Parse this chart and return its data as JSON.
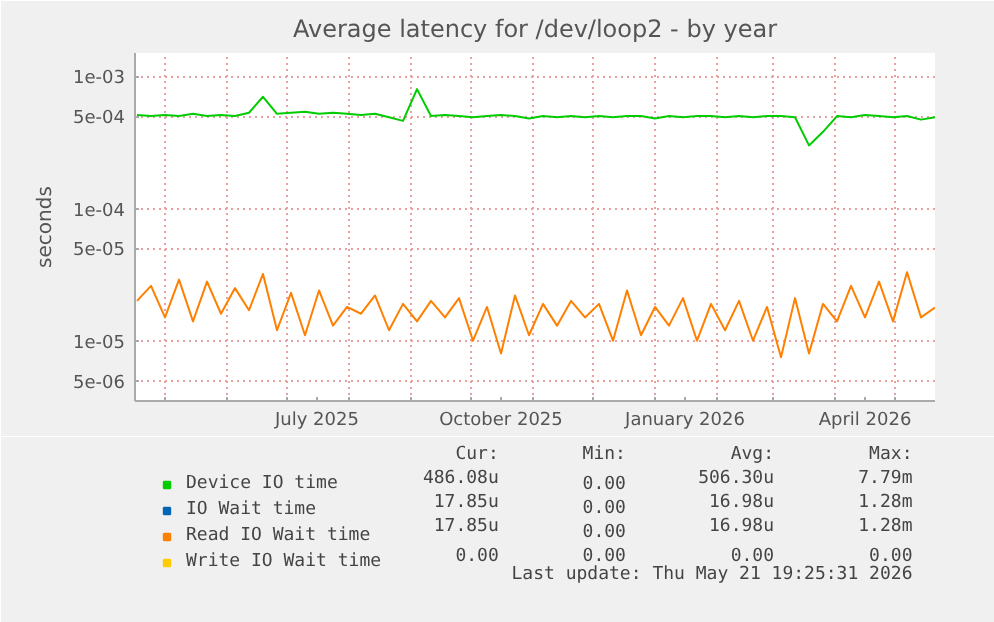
{
  "chart_data": {
    "type": "line",
    "title": "Average latency for /dev/loop2 - by year",
    "ylabel": "seconds",
    "x": [
      "2025-04-17",
      "2025-04-24",
      "2025-05-01",
      "2025-05-08",
      "2025-05-15",
      "2025-05-22",
      "2025-05-29",
      "2025-06-05",
      "2025-06-12",
      "2025-06-19",
      "2025-06-26",
      "2025-07-03",
      "2025-07-10",
      "2025-07-17",
      "2025-07-24",
      "2025-07-31",
      "2025-08-07",
      "2025-08-14",
      "2025-08-21",
      "2025-08-28",
      "2025-09-04",
      "2025-09-11",
      "2025-09-18",
      "2025-09-25",
      "2025-10-02",
      "2025-10-09",
      "2025-10-16",
      "2025-10-23",
      "2025-10-30",
      "2025-11-06",
      "2025-11-13",
      "2025-11-20",
      "2025-11-27",
      "2025-12-04",
      "2025-12-11",
      "2025-12-18",
      "2025-12-25",
      "2026-01-01",
      "2026-01-08",
      "2026-01-15",
      "2026-01-22",
      "2026-01-29",
      "2026-02-05",
      "2026-02-12",
      "2026-02-19",
      "2026-02-26",
      "2026-03-05",
      "2026-03-12",
      "2026-03-19",
      "2026-03-26",
      "2026-04-02",
      "2026-04-09",
      "2026-04-16",
      "2026-04-23",
      "2026-04-30",
      "2026-05-07",
      "2026-05-14",
      "2026-05-21"
    ],
    "series": [
      {
        "name": "Device IO time",
        "color": "#00cc00",
        "values": [
          0.00051,
          0.0005,
          0.00051,
          0.0005,
          0.00052,
          0.0005,
          0.00051,
          0.0005,
          0.00053,
          0.0007,
          0.00052,
          0.00053,
          0.00054,
          0.00052,
          0.00053,
          0.00052,
          0.00051,
          0.00052,
          0.00049,
          0.00046,
          0.0008,
          0.0005,
          0.00051,
          0.0005,
          0.00049,
          0.0005,
          0.00051,
          0.0005,
          0.00048,
          0.0005,
          0.00049,
          0.0005,
          0.00049,
          0.0005,
          0.00049,
          0.0005,
          0.0005,
          0.00048,
          0.0005,
          0.00049,
          0.0005,
          0.0005,
          0.00049,
          0.0005,
          0.00049,
          0.0005,
          0.0005,
          0.00049,
          0.0003,
          0.00038,
          0.0005,
          0.00049,
          0.00051,
          0.0005,
          0.00049,
          0.0005,
          0.00047,
          0.00049
        ]
      },
      {
        "name": "IO Wait time",
        "color": "#0066b3",
        "values": [
          null,
          null,
          null,
          null,
          null,
          null,
          null,
          null,
          null,
          null,
          null,
          null,
          null,
          null,
          null,
          null,
          null,
          null,
          null,
          null,
          null,
          null,
          null,
          null,
          null,
          null,
          null,
          null,
          null,
          null,
          null,
          null,
          null,
          null,
          null,
          null,
          null,
          null,
          null,
          null,
          null,
          null,
          null,
          null,
          null,
          null,
          null,
          null,
          null,
          null,
          null,
          null,
          null,
          null,
          null,
          null,
          null,
          null
        ]
      },
      {
        "name": "Read IO Wait time",
        "color": "#ff8000",
        "values": [
          2e-05,
          2.6e-05,
          1.5e-05,
          2.9e-05,
          1.4e-05,
          2.8e-05,
          1.6e-05,
          2.5e-05,
          1.7e-05,
          3.2e-05,
          1.2e-05,
          2.3e-05,
          1.1e-05,
          2.4e-05,
          1.3e-05,
          1.8e-05,
          1.6e-05,
          2.2e-05,
          1.2e-05,
          1.9e-05,
          1.4e-05,
          2e-05,
          1.5e-05,
          2.1e-05,
          1e-05,
          1.8e-05,
          8e-06,
          2.2e-05,
          1.1e-05,
          1.9e-05,
          1.3e-05,
          2e-05,
          1.5e-05,
          1.9e-05,
          1e-05,
          2.4e-05,
          1.1e-05,
          1.8e-05,
          1.3e-05,
          2.1e-05,
          1e-05,
          1.9e-05,
          1.2e-05,
          2e-05,
          1e-05,
          1.8e-05,
          7.5e-06,
          2.1e-05,
          8e-06,
          1.9e-05,
          1.4e-05,
          2.6e-05,
          1.5e-05,
          2.8e-05,
          1.4e-05,
          3.3e-05,
          1.5e-05,
          1.785e-05
        ]
      },
      {
        "name": "Write IO Wait time",
        "color": "#ffcc00",
        "values": [
          null,
          null,
          null,
          null,
          null,
          null,
          null,
          null,
          null,
          null,
          null,
          null,
          null,
          null,
          null,
          null,
          null,
          null,
          null,
          null,
          null,
          null,
          null,
          null,
          null,
          null,
          null,
          null,
          null,
          null,
          null,
          null,
          null,
          null,
          null,
          null,
          null,
          null,
          null,
          null,
          null,
          null,
          null,
          null,
          null,
          null,
          null,
          null,
          null,
          null,
          null,
          null,
          null,
          null,
          null,
          null,
          null,
          null
        ]
      }
    ],
    "log": "y",
    "xlim": [
      "2025-04-16",
      "2026-05-21"
    ],
    "ylim": [
      3.5e-06,
      0.0015
    ],
    "xticks": [
      {
        "value": "2025-05-01",
        "label": null
      },
      {
        "value": "2025-06-01",
        "label": null
      },
      {
        "value": "2025-07-01",
        "label": null
      },
      {
        "value": "2025-07-16",
        "label": "July 2025"
      },
      {
        "value": "2025-08-01",
        "label": null
      },
      {
        "value": "2025-09-01",
        "label": null
      },
      {
        "value": "2025-10-01",
        "label": null
      },
      {
        "value": "2025-10-16",
        "label": "October 2025"
      },
      {
        "value": "2025-11-01",
        "label": null
      },
      {
        "value": "2025-12-01",
        "label": null
      },
      {
        "value": "2026-01-01",
        "label": null
      },
      {
        "value": "2026-01-16",
        "label": "January 2026"
      },
      {
        "value": "2026-02-01",
        "label": null
      },
      {
        "value": "2026-03-01",
        "label": null
      },
      {
        "value": "2026-04-01",
        "label": null
      },
      {
        "value": "2026-04-16",
        "label": "April 2026"
      },
      {
        "value": "2026-05-01",
        "label": null
      }
    ],
    "yticks": [
      {
        "value": 5e-06,
        "label": "5e-06"
      },
      {
        "value": 1e-05,
        "label": "1e-05"
      },
      {
        "value": 5e-05,
        "label": "5e-05"
      },
      {
        "value": 0.0001,
        "label": "1e-04"
      },
      {
        "value": 0.0005,
        "label": "5e-04"
      },
      {
        "value": 0.001,
        "label": "1e-03"
      }
    ],
    "grid": true,
    "legend": "bottom",
    "line_style": "solid",
    "marker": "none",
    "annotations": [
      "Cur:",
      "Min:",
      "Avg:",
      "Max:",
      "486.08u",
      "0.00",
      "506.30u",
      "7.79m",
      "17.85u",
      "0.00",
      "16.98u",
      "1.28m",
      "17.85u",
      "0.00",
      "16.98u",
      "1.28m",
      "0.00",
      "0.00",
      "0.00",
      "0.00",
      "Last update: Thu May 21 19:25:31 2026"
    ]
  }
}
